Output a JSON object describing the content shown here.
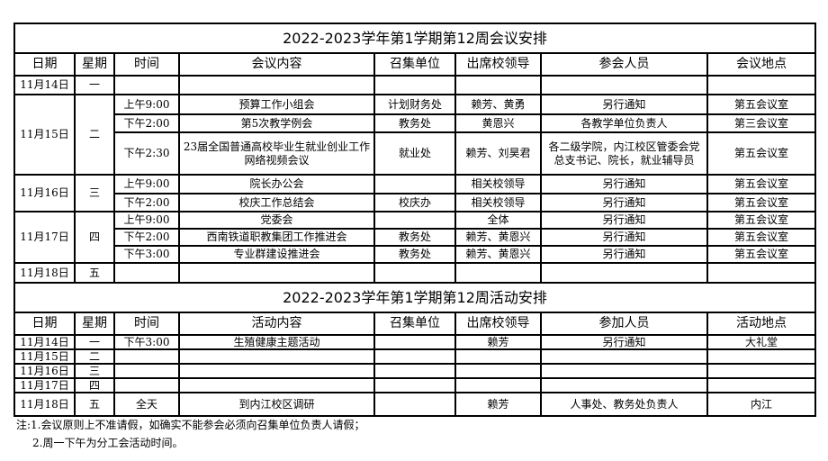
{
  "meeting": {
    "title": "2022-2023学年第1学期第12周会议安排",
    "headers": [
      "日期",
      "星期",
      "时间",
      "会议内容",
      "召集单位",
      "出席校领导",
      "参会人员",
      "会议地点"
    ],
    "days": [
      {
        "date": "11月14日",
        "weekday": "一",
        "rows": [
          {
            "time": "",
            "content": "",
            "convener": "",
            "leader": "",
            "attendees": "",
            "place": ""
          }
        ]
      },
      {
        "date": "11月15日",
        "weekday": "二",
        "rows": [
          {
            "time": "上午9:00",
            "content": "预算工作小组会",
            "convener": "计划财务处",
            "leader": "赖芳、黄勇",
            "attendees": "另行通知",
            "place": "第五会议室"
          },
          {
            "time": "下午2:00",
            "content": "第5次教学例会",
            "convener": "教务处",
            "leader": "黄恩兴",
            "attendees": "各教学单位负责人",
            "place": "第三会议室"
          },
          {
            "time": "下午2:30",
            "content": "23届全国普通高校毕业生就业创业工作网络视频会议",
            "convener": "就业处",
            "leader": "赖芳、刘昊君",
            "attendees": "各二级学院，内江校区管委会党总支书记、院长，就业辅导员",
            "place": "第五会议室"
          }
        ]
      },
      {
        "date": "11月16日",
        "weekday": "三",
        "rows": [
          {
            "time": "上午9:00",
            "content": "院长办公会",
            "convener": "",
            "leader": "相关校领导",
            "attendees": "另行通知",
            "place": "第五会议室"
          },
          {
            "time": "下午2:00",
            "content": "校庆工作总结会",
            "convener": "校庆办",
            "leader": "相关校领导",
            "attendees": "另行通知",
            "place": "第五会议室"
          }
        ]
      },
      {
        "date": "11月17日",
        "weekday": "四",
        "rows": [
          {
            "time": "上午9:00",
            "content": "党委会",
            "convener": "",
            "leader": "全体",
            "attendees": "另行通知",
            "place": "第五会议室"
          },
          {
            "time": "下午2:00",
            "content": "西南铁道职教集团工作推进会",
            "convener": "教务处",
            "leader": "赖芳、黄恩兴",
            "attendees": "另行通知",
            "place": "第五会议室"
          },
          {
            "time": "下午3:00",
            "content": "专业群建设推进会",
            "convener": "教务处",
            "leader": "赖芳、黄恩兴",
            "attendees": "另行通知",
            "place": "第五会议室"
          }
        ]
      },
      {
        "date": "11月18日",
        "weekday": "五",
        "rows": [
          {
            "time": "",
            "content": "",
            "convener": "",
            "leader": "",
            "attendees": "",
            "place": ""
          }
        ]
      }
    ]
  },
  "activity": {
    "title": "2022-2023学年第1学期第12周活动安排",
    "headers": [
      "日期",
      "星期",
      "时间",
      "活动内容",
      "召集单位",
      "出席校领导",
      "参加人员",
      "活动地点"
    ],
    "rows": [
      {
        "date": "11月14日",
        "weekday": "一",
        "time": "下午3:00",
        "content": "生殖健康主题活动",
        "convener": "",
        "leader": "赖芳",
        "attendees": "另行通知",
        "place": "大礼堂"
      },
      {
        "date": "11月15日",
        "weekday": "二",
        "time": "",
        "content": "",
        "convener": "",
        "leader": "",
        "attendees": "",
        "place": ""
      },
      {
        "date": "11月16日",
        "weekday": "三",
        "time": "",
        "content": "",
        "convener": "",
        "leader": "",
        "attendees": "",
        "place": ""
      },
      {
        "date": "11月17日",
        "weekday": "四",
        "time": "",
        "content": "",
        "convener": "",
        "leader": "",
        "attendees": "",
        "place": ""
      },
      {
        "date": "11月18日",
        "weekday": "五",
        "time": "全天",
        "content": "到内江校区调研",
        "convener": "",
        "leader": "赖芳",
        "attendees": "人事处、教务处负责人",
        "place": "内江"
      }
    ]
  },
  "notes": [
    "注:1.会议原则上不准请假，如确实不能参会必须向召集单位负责人请假；",
    "2.周一下午为分工会活动时间。"
  ]
}
